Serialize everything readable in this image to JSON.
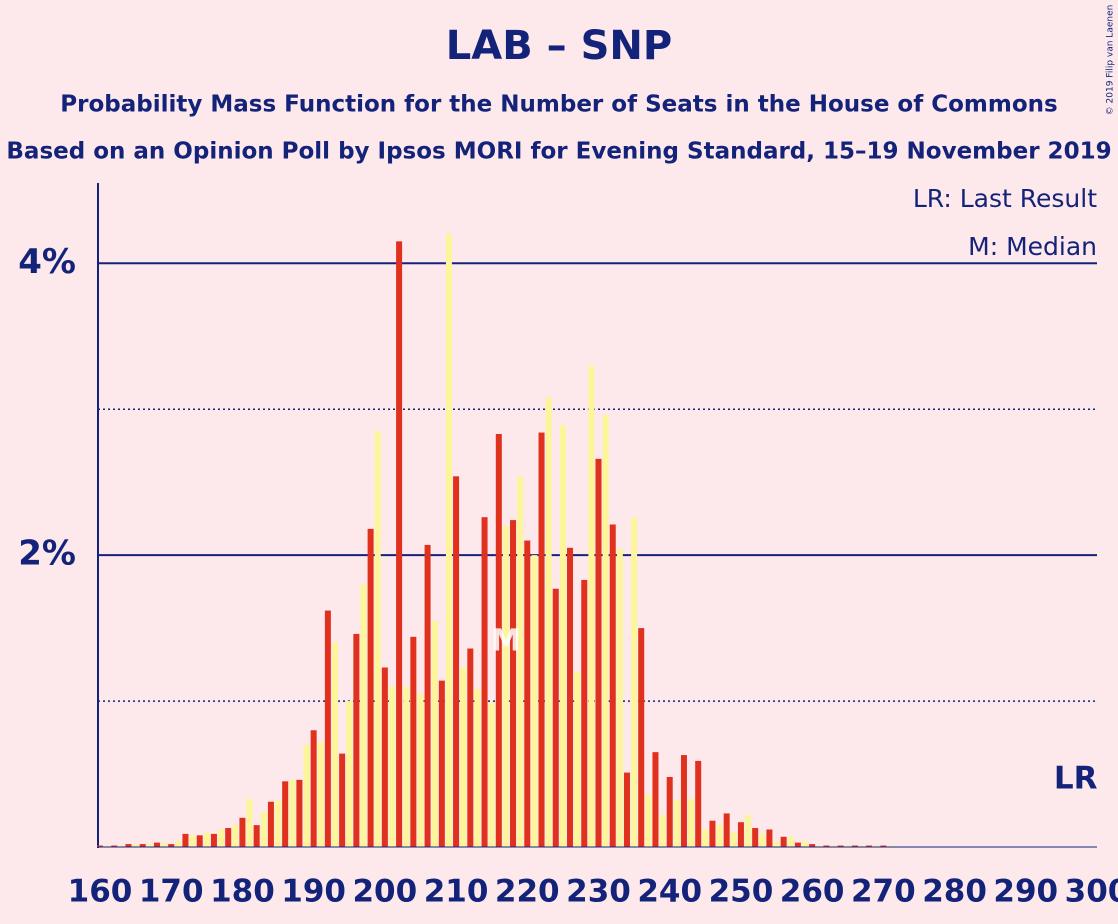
{
  "chart_data": {
    "type": "bar",
    "title": "LAB – SNP",
    "subtitle": "Probability Mass Function for the Number of Seats in the House of Commons",
    "subtitle2": "Based on an Opinion Poll by Ipsos MORI for Evening Standard, 15–19 November 2019",
    "copyright": "© 2019 Filip van Laenen",
    "legend": [
      "LR: Last Result",
      "M: Median"
    ],
    "markers": [
      {
        "label": "M",
        "x": 217
      },
      {
        "label": "LR",
        "x": 297
      }
    ],
    "bar_colors": [
      "#e0301e",
      "#fdf59a"
    ],
    "x": [
      160,
      161,
      162,
      163,
      164,
      165,
      166,
      167,
      168,
      169,
      170,
      171,
      172,
      173,
      174,
      175,
      176,
      177,
      178,
      179,
      180,
      181,
      182,
      183,
      184,
      185,
      186,
      187,
      188,
      189,
      190,
      191,
      192,
      193,
      194,
      195,
      196,
      197,
      198,
      199,
      200,
      201,
      202,
      203,
      204,
      205,
      206,
      207,
      208,
      209,
      210,
      211,
      212,
      213,
      214,
      215,
      216,
      217,
      218,
      219,
      220,
      221,
      222,
      223,
      224,
      225,
      226,
      227,
      228,
      229,
      230,
      231,
      232,
      233,
      234,
      235,
      236,
      237,
      238,
      239,
      240,
      241,
      242,
      243,
      244,
      245,
      246,
      247,
      248,
      249,
      250,
      251,
      252,
      253,
      254,
      255,
      256,
      257,
      258,
      259,
      260,
      261,
      262,
      263,
      264,
      265,
      266,
      267,
      268,
      269,
      270,
      271,
      272,
      273,
      274,
      275,
      276,
      277,
      278,
      279,
      280,
      281,
      282,
      283,
      284,
      285,
      286,
      287,
      288,
      289,
      290,
      291,
      292,
      293,
      294,
      295,
      296,
      297,
      298,
      299,
      300
    ],
    "values": [
      0.01,
      0.01,
      0.01,
      0.01,
      0.02,
      0.02,
      0.02,
      0.02,
      0.03,
      0.03,
      0.02,
      0.04,
      0.09,
      0.08,
      0.08,
      0.1,
      0.09,
      0.12,
      0.13,
      0.15,
      0.2,
      0.33,
      0.15,
      0.24,
      0.31,
      0.32,
      0.45,
      0.46,
      0.46,
      0.7,
      0.8,
      0.72,
      1.62,
      1.4,
      0.64,
      1.0,
      1.46,
      1.8,
      2.18,
      2.85,
      1.23,
      1.1,
      4.15,
      1.1,
      1.44,
      1.05,
      2.07,
      1.55,
      1.14,
      4.2,
      2.54,
      1.23,
      1.36,
      1.08,
      2.26,
      0.99,
      2.83,
      2.2,
      2.24,
      2.54,
      2.1,
      2.0,
      2.84,
      3.08,
      1.77,
      2.89,
      2.05,
      1.2,
      1.83,
      3.3,
      2.66,
      2.96,
      2.21,
      2.04,
      0.51,
      2.26,
      1.5,
      0.36,
      0.65,
      0.22,
      0.48,
      0.32,
      0.63,
      0.33,
      0.59,
      0.12,
      0.18,
      0.15,
      0.23,
      0.1,
      0.17,
      0.22,
      0.13,
      0.09,
      0.12,
      0.04,
      0.07,
      0.07,
      0.03,
      0.04,
      0.02,
      0.01,
      0.01,
      0.01,
      0.01,
      0.01,
      0.01,
      0.01,
      0.01,
      0.01,
      0.01,
      0.01,
      0,
      0,
      0,
      0,
      0,
      0,
      0,
      0,
      0,
      0,
      0,
      0,
      0,
      0,
      0,
      0,
      0,
      0,
      0,
      0,
      0,
      0,
      0,
      0,
      0,
      0,
      0,
      0,
      0
    ],
    "xlim": [
      160,
      300
    ],
    "xticks": [
      160,
      170,
      180,
      190,
      200,
      210,
      220,
      230,
      240,
      250,
      260,
      270,
      280,
      290,
      300
    ],
    "ylim": [
      0,
      4.55
    ],
    "yticks": [
      {
        "value": 2,
        "label": "2%"
      },
      {
        "value": 4,
        "label": "4%"
      }
    ],
    "minor_yticks": [
      1,
      3
    ],
    "grid": true
  }
}
